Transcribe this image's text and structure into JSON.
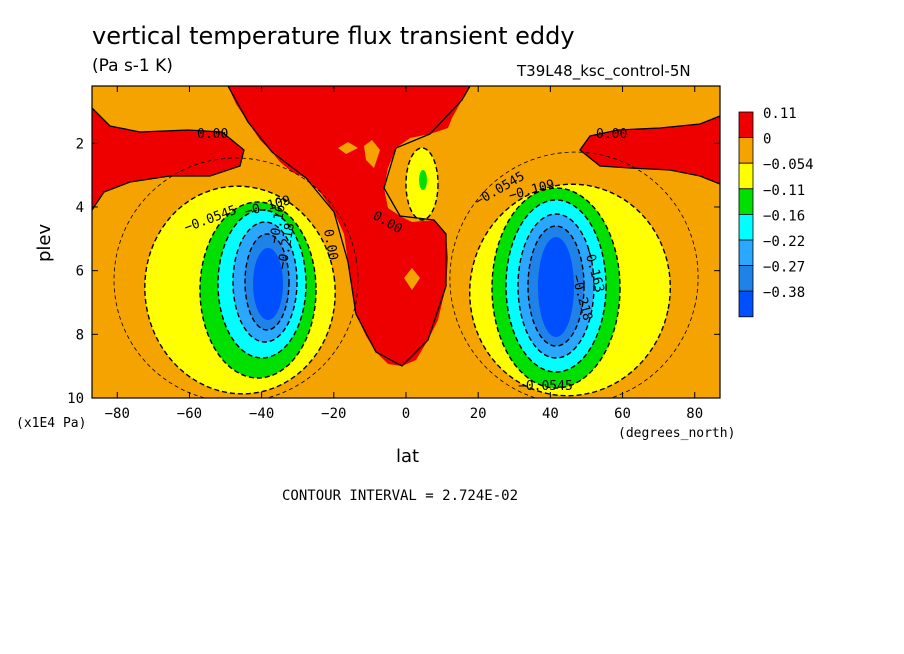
{
  "header": {
    "title": "vertical temperature flux transient eddy",
    "units": "(Pa s-1 K)",
    "run": "T39L48_ksc_control-5N"
  },
  "footer": {
    "contour_interval": "CONTOUR INTERVAL = 2.724E-02"
  },
  "colors": {
    "red": "#ee0000",
    "orange": "#f5a300",
    "yellow": "#ffff00",
    "green": "#00e000",
    "cyan": "#00ffff",
    "lightblue": "#2aa8ff",
    "midblue": "#1f82e6",
    "blue": "#0050ff"
  },
  "chart_data": {
    "type": "contour",
    "title": "vertical temperature flux transient eddy",
    "xlabel": "lat",
    "xunits": "(degrees_north)",
    "ylabel": "plev",
    "yunits": "(x1E4 Pa)",
    "xlim": [
      -87,
      87
    ],
    "ylim": [
      10,
      0.2
    ],
    "xticks": [
      "-80",
      "-60",
      "-40",
      "-20",
      "0",
      "20",
      "40",
      "60",
      "80"
    ],
    "yticks": [
      "2",
      "4",
      "6",
      "8",
      "10"
    ],
    "colorbar": [
      "0.11",
      "0",
      "−0.054",
      "−0.11",
      "−0.16",
      "−0.22",
      "−0.27",
      "−0.38"
    ],
    "contour_labels": [
      "0.00",
      "0.00",
      "0.00",
      "0.00",
      "−0.0545",
      "−0.109",
      "−0.163",
      "−0.218",
      "−0.0545",
      "−0.109",
      "−0.163",
      "−0.218",
      "−0.0545"
    ],
    "features": [
      {
        "kind": "minimum",
        "lat": -38,
        "plev": 6.3,
        "value": -0.38
      },
      {
        "kind": "minimum",
        "lat": 40,
        "plev": 6.4,
        "value": -0.38
      }
    ]
  }
}
